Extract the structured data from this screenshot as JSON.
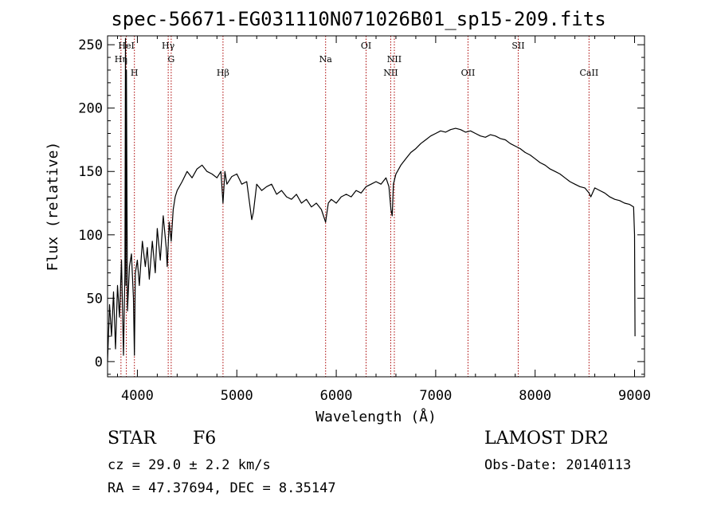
{
  "header": {
    "title": "spec-56671-EG031110N071026B01_sp15-209.fits"
  },
  "info": {
    "object_type": "STAR",
    "subclass": "F6",
    "survey": "LAMOST DR2",
    "redshift_line": "cz = 29.0 ± 2.2 km/s",
    "obs_date_line": "Obs-Date: 20140113",
    "radec_line": "RA =  47.37694, DEC =   8.35147"
  },
  "chart_data": {
    "type": "line",
    "title": "spec-56671-EG031110N071026B01_sp15-209.fits",
    "xlabel": "Wavelength (Å)",
    "ylabel": "Flux (relative)",
    "xlim": [
      3700,
      9100
    ],
    "ylim": [
      -12,
      257
    ],
    "x_ticks": [
      4000,
      5000,
      6000,
      7000,
      8000,
      9000
    ],
    "y_ticks": [
      0,
      50,
      100,
      150,
      200,
      250
    ],
    "grid": false,
    "line_color": "#000000",
    "marker_color": "#aa0000",
    "lines": [
      {
        "label": "Hη",
        "x": 3835,
        "row": 2
      },
      {
        "label": "HeI",
        "x": 3889,
        "row": 1
      },
      {
        "label": "H",
        "x": 3970,
        "row": 3
      },
      {
        "label": "Hγ",
        "x": 4310,
        "row": 1
      },
      {
        "label": "G",
        "x": 4340,
        "row": 2
      },
      {
        "label": "Hβ",
        "x": 4861,
        "row": 3
      },
      {
        "label": "Na",
        "x": 5893,
        "row": 2
      },
      {
        "label": "OI",
        "x": 6300,
        "row": 1
      },
      {
        "label": "NII",
        "x": 6548,
        "row": 3
      },
      {
        "label": "NII",
        "x": 6584,
        "row": 2
      },
      {
        "label": "OII",
        "x": 7325,
        "row": 3
      },
      {
        "label": "SII",
        "x": 7830,
        "row": 1
      },
      {
        "label": "CaII",
        "x": 8542,
        "row": 3
      }
    ],
    "series": [
      {
        "x": [
          3700,
          3720,
          3740,
          3760,
          3780,
          3800,
          3820,
          3840,
          3860,
          3875,
          3880,
          3885,
          3890,
          3900,
          3920,
          3940,
          3960,
          3970,
          3980,
          4000,
          4020,
          4050,
          4080,
          4100,
          4120,
          4150,
          4180,
          4200,
          4230,
          4260,
          4290,
          4300,
          4320,
          4340,
          4360,
          4380,
          4400,
          4450,
          4500,
          4550,
          4600,
          4650,
          4700,
          4750,
          4800,
          4840,
          4861,
          4880,
          4900,
          4950,
          5000,
          5050,
          5100,
          5150,
          5167,
          5200,
          5250,
          5300,
          5350,
          5400,
          5450,
          5500,
          5550,
          5600,
          5650,
          5700,
          5750,
          5800,
          5850,
          5893,
          5920,
          5950,
          6000,
          6050,
          6100,
          6150,
          6200,
          6250,
          6300,
          6350,
          6400,
          6450,
          6500,
          6530,
          6550,
          6563,
          6575,
          6600,
          6650,
          6700,
          6750,
          6800,
          6850,
          6900,
          6950,
          7000,
          7050,
          7100,
          7150,
          7200,
          7250,
          7300,
          7350,
          7400,
          7450,
          7500,
          7550,
          7600,
          7650,
          7700,
          7750,
          7800,
          7850,
          7900,
          7950,
          8000,
          8050,
          8100,
          8150,
          8200,
          8250,
          8300,
          8350,
          8400,
          8450,
          8500,
          8542,
          8560,
          8600,
          8650,
          8700,
          8750,
          8800,
          8850,
          8900,
          8950,
          8990,
          9000,
          9005
        ],
        "values": [
          0,
          45,
          20,
          55,
          10,
          60,
          35,
          80,
          5,
          70,
          255,
          60,
          230,
          40,
          75,
          85,
          50,
          5,
          70,
          80,
          60,
          95,
          75,
          90,
          65,
          95,
          70,
          105,
          80,
          115,
          90,
          75,
          110,
          95,
          120,
          130,
          135,
          142,
          150,
          145,
          152,
          155,
          150,
          148,
          145,
          150,
          125,
          150,
          140,
          146,
          148,
          140,
          142,
          112,
          118,
          140,
          135,
          138,
          140,
          132,
          135,
          130,
          128,
          132,
          125,
          128,
          122,
          125,
          120,
          110,
          125,
          128,
          125,
          130,
          132,
          130,
          135,
          133,
          138,
          140,
          142,
          140,
          145,
          138,
          120,
          115,
          140,
          148,
          155,
          160,
          165,
          168,
          172,
          175,
          178,
          180,
          182,
          181,
          183,
          184,
          183,
          181,
          182,
          180,
          178,
          177,
          179,
          178,
          176,
          175,
          172,
          170,
          168,
          165,
          163,
          160,
          157,
          155,
          152,
          150,
          148,
          145,
          142,
          140,
          138,
          137,
          133,
          130,
          137,
          135,
          133,
          130,
          128,
          127,
          125,
          124,
          122,
          100,
          20
        ]
      }
    ]
  }
}
